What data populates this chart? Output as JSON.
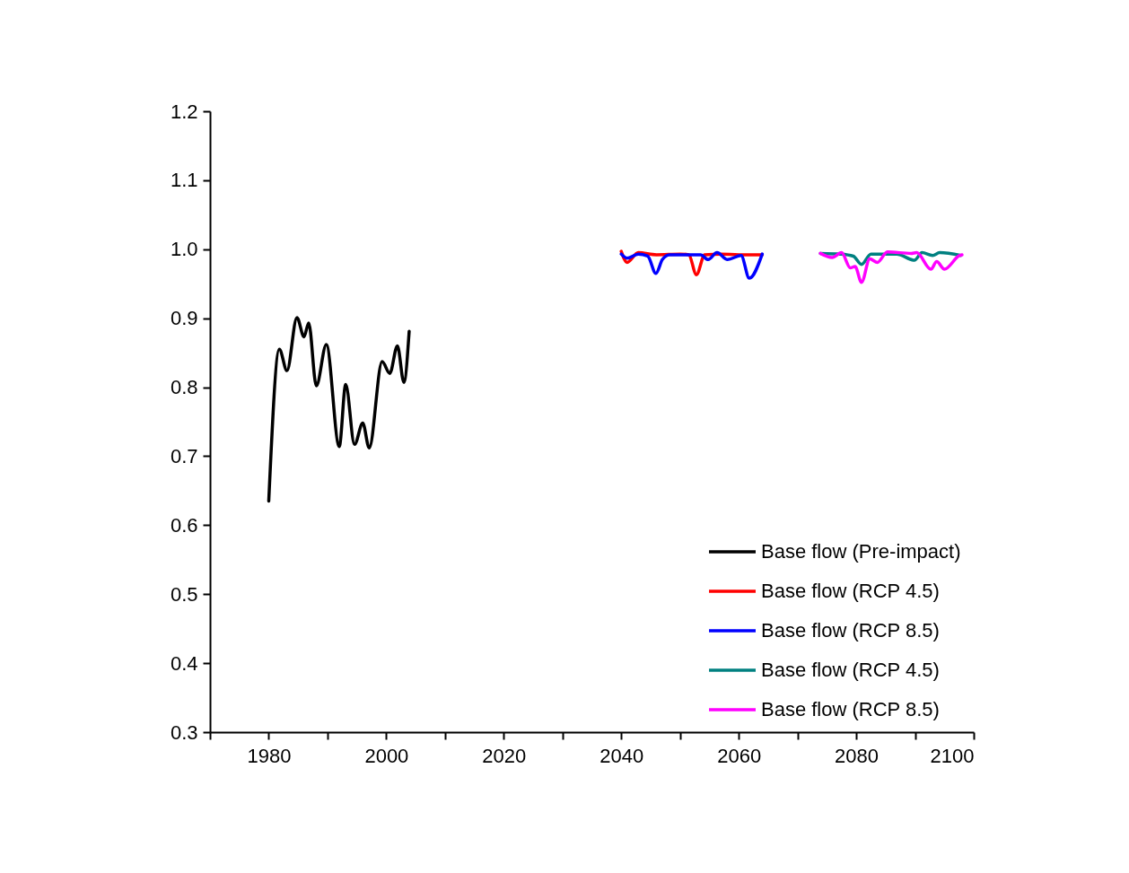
{
  "chart_data": {
    "type": "line",
    "xlim": [
      1970,
      2100
    ],
    "ylim": [
      0.3,
      1.2
    ],
    "xticks": [
      {
        "value": 1970,
        "label": null
      },
      1980,
      {
        "value": 1990,
        "label": null
      },
      2000,
      {
        "value": 2010,
        "label": null
      },
      2020,
      {
        "value": 2030,
        "label": null
      },
      2040,
      {
        "value": 2050,
        "label": null
      },
      2060,
      {
        "value": 2070,
        "label": null
      },
      2080,
      {
        "value": 2090,
        "label": null
      },
      2100
    ],
    "yticks": [
      0.3,
      0.4,
      0.5,
      0.6,
      0.7,
      0.8,
      0.9,
      {
        "value": 1.0,
        "label": "1.0"
      },
      1.1,
      1.2
    ],
    "grid": false,
    "legend": "bottom right",
    "line_style": "solid",
    "marker": "none",
    "series": [
      {
        "name": "Base flow (Pre-impact)",
        "color": "#000000",
        "x": [
          1980,
          1981.8,
          1983.1,
          1984.8,
          1986.0,
          1986.8,
          1988.1,
          1989.8,
          1992.0,
          1993.1,
          1994.6,
          1996.0,
          1997.1,
          1999.3,
          2000.6,
          2001.9,
          2003.0,
          2003.9
        ],
        "values": [
          0.635,
          0.855,
          0.824,
          0.901,
          0.873,
          0.893,
          0.802,
          0.862,
          0.714,
          0.804,
          0.717,
          0.748,
          0.712,
          0.837,
          0.82,
          0.86,
          0.807,
          0.881
        ]
      },
      {
        "name": "Base flow (RCP 4.5)",
        "color": "#ff0000",
        "x": [
          2040,
          2041,
          2042.9,
          2046,
          2050,
          2051.5,
          2052.8,
          2054.2,
          2057,
          2060,
          2064
        ],
        "values": [
          0.997,
          0.981,
          0.995,
          0.992,
          0.993,
          0.992,
          0.963,
          0.992,
          0.993,
          0.992,
          0.992
        ]
      },
      {
        "name": "Base flow (RCP 8.5)",
        "color": "#0000ff",
        "x": [
          2040,
          2041,
          2042.9,
          2044.5,
          2045.9,
          2047,
          2048.2,
          2053.5,
          2054.8,
          2056.3,
          2058.1,
          2060.4,
          2061.8,
          2064
        ],
        "values": [
          0.993,
          0.987,
          0.993,
          0.99,
          0.965,
          0.985,
          0.992,
          0.992,
          0.985,
          0.995,
          0.985,
          0.991,
          0.958,
          0.993
        ]
      },
      {
        "name": "Base flow (RCP 4.5)",
        "color": "#008080",
        "x": [
          2073.9,
          2077.4,
          2079.5,
          2080.9,
          2082.5,
          2086.9,
          2089.9,
          2091.2,
          2093,
          2094.2,
          2097.8
        ],
        "values": [
          0.994,
          0.993,
          0.99,
          0.978,
          0.993,
          0.993,
          0.984,
          0.995,
          0.991,
          0.995,
          0.991
        ]
      },
      {
        "name": "Base flow (RCP 8.5)",
        "color": "#ff00ff",
        "x": [
          2073.9,
          2075.9,
          2077.5,
          2079,
          2079.8,
          2080.9,
          2082.3,
          2083.6,
          2085.3,
          2089.4,
          2090.3,
          2092.7,
          2093.7,
          2095,
          2097.6,
          2098
        ],
        "values": [
          0.994,
          0.988,
          0.995,
          0.973,
          0.975,
          0.952,
          0.986,
          0.981,
          0.996,
          0.994,
          0.995,
          0.971,
          0.982,
          0.971,
          0.991,
          0.992
        ]
      }
    ]
  }
}
